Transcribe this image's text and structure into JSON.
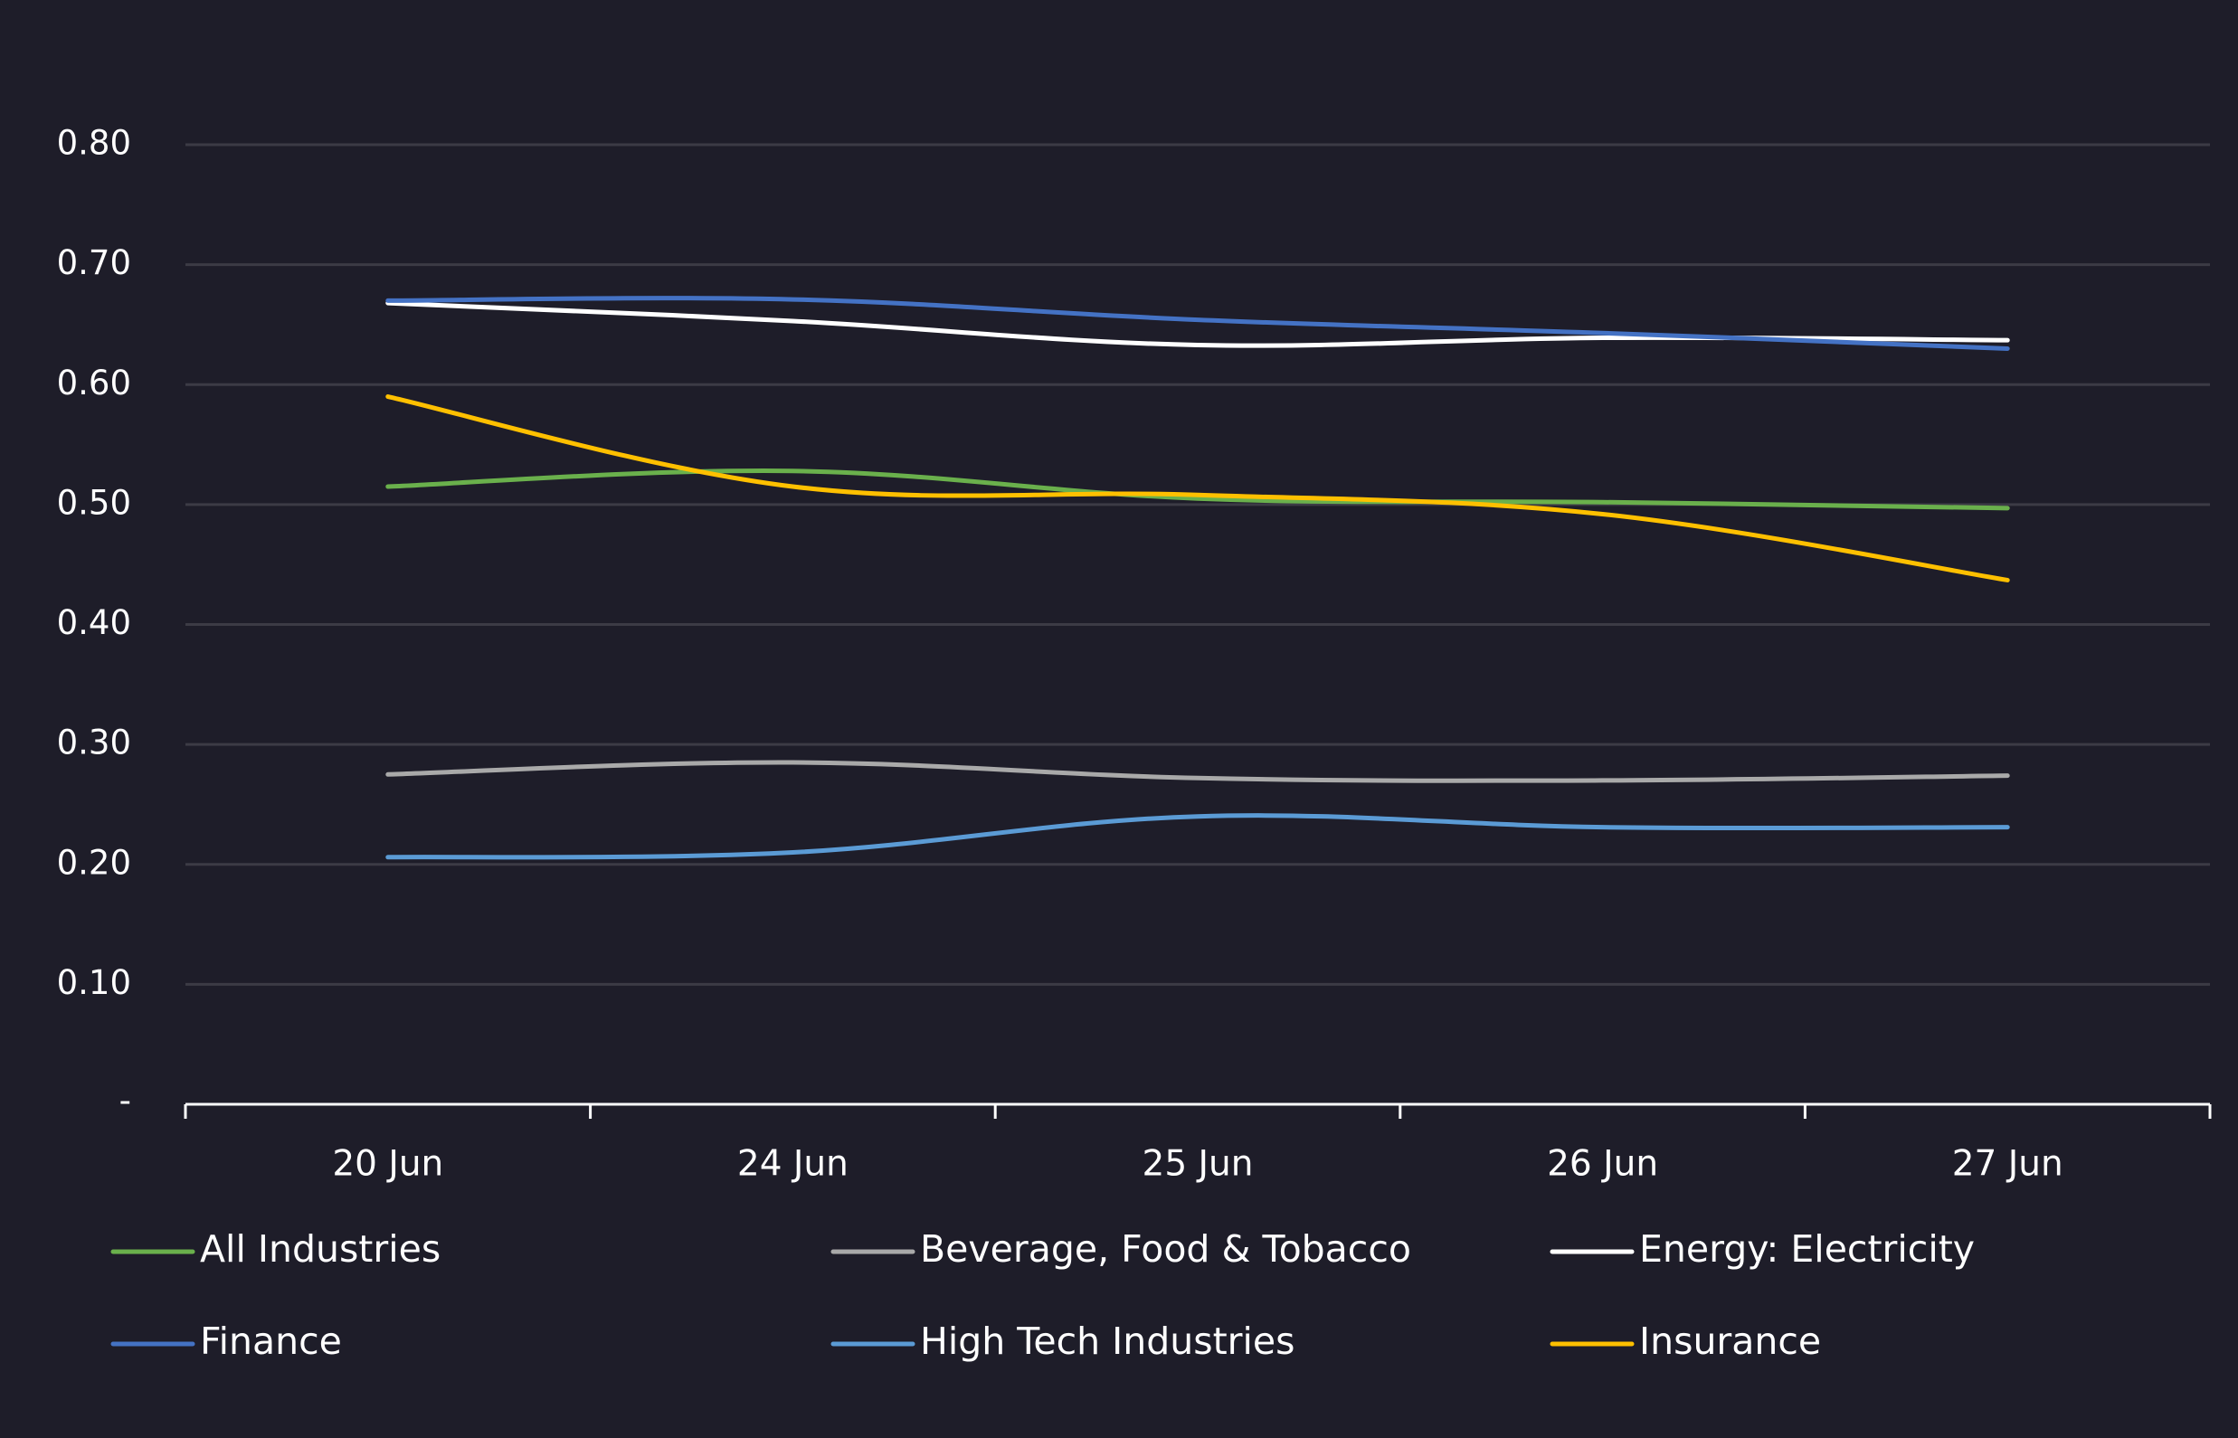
{
  "chart_data": {
    "type": "line",
    "title": "",
    "xlabel": "",
    "ylabel": "",
    "categories": [
      "20 Jun",
      "24 Jun",
      "25 Jun",
      "26 Jun",
      "27 Jun"
    ],
    "ylim": [
      0,
      0.8
    ],
    "yticks": [
      {
        "value": 0,
        "label": "-"
      },
      {
        "value": 0.1,
        "label": "0.10"
      },
      {
        "value": 0.2,
        "label": "0.20"
      },
      {
        "value": 0.3,
        "label": "0.30"
      },
      {
        "value": 0.4,
        "label": "0.40"
      },
      {
        "value": 0.5,
        "label": "0.50"
      },
      {
        "value": 0.6,
        "label": "0.60"
      },
      {
        "value": 0.7,
        "label": "0.70"
      },
      {
        "value": 0.8,
        "label": "0.80"
      }
    ],
    "grid": true,
    "legend_position": "bottom",
    "series": [
      {
        "name": "All Industries",
        "color": "#6ab04c",
        "values": [
          0.515,
          0.528,
          0.505,
          0.502,
          0.497
        ]
      },
      {
        "name": "Beverage, Food & Tobacco",
        "color": "#a9a9a9",
        "values": [
          0.275,
          0.285,
          0.272,
          0.27,
          0.274
        ]
      },
      {
        "name": "Energy: Electricity",
        "color": "#ffffff",
        "values": [
          0.668,
          0.653,
          0.633,
          0.639,
          0.637
        ]
      },
      {
        "name": "Finance",
        "color": "#4472c4",
        "values": [
          0.67,
          0.671,
          0.654,
          0.643,
          0.63
        ]
      },
      {
        "name": "High Tech Industries",
        "color": "#5b9bd5",
        "values": [
          0.206,
          0.21,
          0.24,
          0.231,
          0.231
        ]
      },
      {
        "name": "Insurance",
        "color": "#ffc000",
        "values": [
          0.59,
          0.515,
          0.508,
          0.492,
          0.437
        ]
      }
    ]
  }
}
